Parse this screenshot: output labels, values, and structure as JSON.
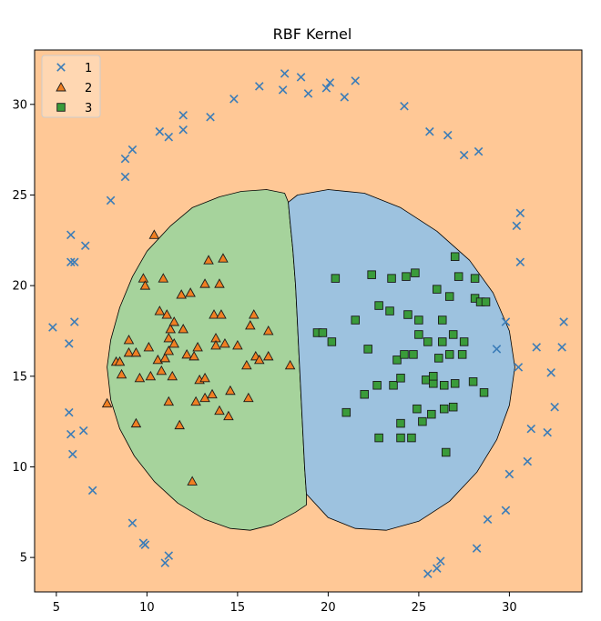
{
  "chart_data": {
    "type": "scatter",
    "title": "RBF Kernel",
    "xlabel": "",
    "ylabel": "",
    "xlim": [
      3.8,
      34.0
    ],
    "ylim": [
      3.1,
      33.0
    ],
    "xticks": [
      5,
      10,
      15,
      20,
      25,
      30
    ],
    "yticks": [
      5,
      10,
      15,
      20,
      25,
      30
    ],
    "grid": false,
    "legend_position": "top-left",
    "colors": {
      "background_region": "#FFC896",
      "region_2": "#A6D39C",
      "region_3": "#9DC2DF",
      "series_1": "#3A7CB8",
      "series_2": "#F07F22",
      "series_3": "#3A9B3A",
      "marker_edge": "#1a1a1a"
    },
    "decision_regions": [
      {
        "class": "2",
        "label": "region 2",
        "boundary": [
          [
            17.6,
            25.1
          ],
          [
            16.6,
            25.3
          ],
          [
            15.2,
            25.2
          ],
          [
            14.0,
            24.9
          ],
          [
            12.5,
            24.3
          ],
          [
            11.3,
            23.3
          ],
          [
            10.0,
            21.9
          ],
          [
            9.2,
            20.5
          ],
          [
            8.5,
            18.8
          ],
          [
            8.0,
            17.0
          ],
          [
            7.8,
            15.5
          ],
          [
            8.0,
            13.7
          ],
          [
            8.5,
            12.1
          ],
          [
            9.3,
            10.6
          ],
          [
            10.4,
            9.2
          ],
          [
            11.7,
            8.0
          ],
          [
            13.2,
            7.1
          ],
          [
            14.6,
            6.6
          ],
          [
            15.7,
            6.5
          ],
          [
            16.9,
            6.8
          ],
          [
            18.2,
            7.5
          ],
          [
            18.8,
            7.9
          ],
          [
            18.8,
            8.5
          ],
          [
            18.7,
            10
          ],
          [
            18.6,
            12
          ],
          [
            18.5,
            14
          ],
          [
            18.4,
            16
          ],
          [
            18.3,
            18
          ],
          [
            18.2,
            20
          ],
          [
            18.05,
            22
          ],
          [
            17.9,
            23.5
          ],
          [
            17.8,
            24.6
          ]
        ]
      },
      {
        "class": "3",
        "label": "region 3",
        "boundary": [
          [
            17.8,
            24.6
          ],
          [
            18.3,
            25.0
          ],
          [
            20.0,
            25.3
          ],
          [
            22.0,
            25.1
          ],
          [
            24.0,
            24.3
          ],
          [
            26.0,
            23.0
          ],
          [
            27.8,
            21.4
          ],
          [
            29.1,
            19.6
          ],
          [
            30.0,
            17.5
          ],
          [
            30.3,
            15.5
          ],
          [
            30.0,
            13.4
          ],
          [
            29.3,
            11.5
          ],
          [
            28.2,
            9.7
          ],
          [
            26.7,
            8.1
          ],
          [
            25.0,
            7.0
          ],
          [
            23.2,
            6.5
          ],
          [
            21.5,
            6.6
          ],
          [
            20.0,
            7.2
          ],
          [
            18.8,
            8.5
          ],
          [
            18.7,
            10
          ],
          [
            18.6,
            12
          ],
          [
            18.5,
            14
          ],
          [
            18.4,
            16
          ],
          [
            18.3,
            18
          ],
          [
            18.2,
            20
          ],
          [
            18.05,
            22
          ],
          [
            17.9,
            23.5
          ]
        ]
      }
    ],
    "series": [
      {
        "name": "1",
        "marker": "x",
        "points": [
          [
            4.8,
            17.7
          ],
          [
            5.7,
            16.8
          ],
          [
            5.8,
            21.3
          ],
          [
            5.8,
            22.8
          ],
          [
            6.0,
            21.3
          ],
          [
            6.0,
            18.0
          ],
          [
            5.7,
            13.0
          ],
          [
            5.8,
            11.8
          ],
          [
            5.9,
            10.7
          ],
          [
            6.5,
            12.0
          ],
          [
            6.6,
            22.2
          ],
          [
            7.0,
            8.7
          ],
          [
            8.0,
            24.7
          ],
          [
            8.8,
            26.0
          ],
          [
            8.8,
            27.0
          ],
          [
            9.2,
            27.5
          ],
          [
            9.2,
            6.9
          ],
          [
            9.8,
            5.8
          ],
          [
            9.9,
            5.7
          ],
          [
            10.7,
            28.5
          ],
          [
            11.0,
            4.7
          ],
          [
            11.2,
            28.2
          ],
          [
            11.2,
            5.1
          ],
          [
            12.0,
            28.6
          ],
          [
            12.0,
            29.4
          ],
          [
            13.5,
            29.3
          ],
          [
            14.8,
            30.3
          ],
          [
            16.2,
            31.0
          ],
          [
            17.5,
            30.8
          ],
          [
            17.6,
            31.7
          ],
          [
            18.5,
            31.5
          ],
          [
            18.9,
            30.6
          ],
          [
            19.9,
            30.9
          ],
          [
            20.1,
            31.2
          ],
          [
            20.9,
            30.4
          ],
          [
            21.5,
            31.3
          ],
          [
            24.2,
            29.9
          ],
          [
            25.6,
            28.5
          ],
          [
            25.5,
            4.1
          ],
          [
            26.0,
            4.4
          ],
          [
            26.2,
            4.8
          ],
          [
            26.6,
            28.3
          ],
          [
            27.5,
            27.2
          ],
          [
            28.2,
            5.5
          ],
          [
            28.3,
            27.4
          ],
          [
            28.8,
            7.1
          ],
          [
            29.3,
            16.5
          ],
          [
            29.8,
            18.0
          ],
          [
            29.8,
            7.6
          ],
          [
            30.0,
            9.6
          ],
          [
            30.4,
            23.3
          ],
          [
            30.5,
            15.5
          ],
          [
            30.6,
            24.0
          ],
          [
            30.6,
            21.3
          ],
          [
            31.0,
            10.3
          ],
          [
            31.2,
            12.1
          ],
          [
            31.5,
            16.6
          ],
          [
            32.1,
            11.9
          ],
          [
            32.3,
            15.2
          ],
          [
            32.5,
            13.3
          ],
          [
            32.9,
            16.6
          ],
          [
            33.0,
            18.0
          ]
        ]
      },
      {
        "name": "2",
        "marker": "triangle",
        "points": [
          [
            7.8,
            13.5
          ],
          [
            8.3,
            15.8
          ],
          [
            8.5,
            15.8
          ],
          [
            8.6,
            15.1
          ],
          [
            9.0,
            17.0
          ],
          [
            9.0,
            16.3
          ],
          [
            9.4,
            16.3
          ],
          [
            9.4,
            12.4
          ],
          [
            9.6,
            14.9
          ],
          [
            9.8,
            20.4
          ],
          [
            9.9,
            20.0
          ],
          [
            10.1,
            16.6
          ],
          [
            10.2,
            15.0
          ],
          [
            10.4,
            22.8
          ],
          [
            10.6,
            15.9
          ],
          [
            10.7,
            18.6
          ],
          [
            10.8,
            15.3
          ],
          [
            10.9,
            20.4
          ],
          [
            11.0,
            16.0
          ],
          [
            11.1,
            18.4
          ],
          [
            11.2,
            17.1
          ],
          [
            11.2,
            16.4
          ],
          [
            11.2,
            13.6
          ],
          [
            11.3,
            17.6
          ],
          [
            11.4,
            15.0
          ],
          [
            11.5,
            16.8
          ],
          [
            11.5,
            18.0
          ],
          [
            11.8,
            12.3
          ],
          [
            11.9,
            19.5
          ],
          [
            12.0,
            17.6
          ],
          [
            12.2,
            16.2
          ],
          [
            12.4,
            19.6
          ],
          [
            12.5,
            9.2
          ],
          [
            12.6,
            16.1
          ],
          [
            12.7,
            13.6
          ],
          [
            12.8,
            16.6
          ],
          [
            12.9,
            14.8
          ],
          [
            13.2,
            13.8
          ],
          [
            13.2,
            20.1
          ],
          [
            13.2,
            14.9
          ],
          [
            13.4,
            21.4
          ],
          [
            13.6,
            14.0
          ],
          [
            13.7,
            18.4
          ],
          [
            13.8,
            17.1
          ],
          [
            13.8,
            16.7
          ],
          [
            14.1,
            18.4
          ],
          [
            14.0,
            20.1
          ],
          [
            14.0,
            13.1
          ],
          [
            14.2,
            21.5
          ],
          [
            14.3,
            16.8
          ],
          [
            14.6,
            14.2
          ],
          [
            14.5,
            12.8
          ],
          [
            15.0,
            16.7
          ],
          [
            15.5,
            15.6
          ],
          [
            15.6,
            13.8
          ],
          [
            15.7,
            17.8
          ],
          [
            15.9,
            18.4
          ],
          [
            16.0,
            16.1
          ],
          [
            16.2,
            15.9
          ],
          [
            16.7,
            17.5
          ],
          [
            16.7,
            16.1
          ],
          [
            17.9,
            15.6
          ]
        ]
      },
      {
        "name": "3",
        "marker": "square",
        "points": [
          [
            19.4,
            17.4
          ],
          [
            19.7,
            17.4
          ],
          [
            20.2,
            16.9
          ],
          [
            20.4,
            20.4
          ],
          [
            21.0,
            13.0
          ],
          [
            21.5,
            18.1
          ],
          [
            22.0,
            14.0
          ],
          [
            22.2,
            16.5
          ],
          [
            22.4,
            20.6
          ],
          [
            22.7,
            14.5
          ],
          [
            22.8,
            11.6
          ],
          [
            22.8,
            18.9
          ],
          [
            23.4,
            18.6
          ],
          [
            23.5,
            20.4
          ],
          [
            23.6,
            14.5
          ],
          [
            23.8,
            15.9
          ],
          [
            24.0,
            12.4
          ],
          [
            24.0,
            11.6
          ],
          [
            24.0,
            14.9
          ],
          [
            24.2,
            16.2
          ],
          [
            24.3,
            20.5
          ],
          [
            24.4,
            18.4
          ],
          [
            24.6,
            11.6
          ],
          [
            24.7,
            16.2
          ],
          [
            24.9,
            13.2
          ],
          [
            24.8,
            20.7
          ],
          [
            25.0,
            18.1
          ],
          [
            25.0,
            17.3
          ],
          [
            25.2,
            12.5
          ],
          [
            25.4,
            14.8
          ],
          [
            25.5,
            16.9
          ],
          [
            25.7,
            12.9
          ],
          [
            25.8,
            14.6
          ],
          [
            25.8,
            15.0
          ],
          [
            26.0,
            19.8
          ],
          [
            26.1,
            16.0
          ],
          [
            26.3,
            16.9
          ],
          [
            26.3,
            18.1
          ],
          [
            26.4,
            13.2
          ],
          [
            26.5,
            10.8
          ],
          [
            26.4,
            14.5
          ],
          [
            26.7,
            19.4
          ],
          [
            26.7,
            16.2
          ],
          [
            26.9,
            17.3
          ],
          [
            26.9,
            13.3
          ],
          [
            27.0,
            21.6
          ],
          [
            27.0,
            14.6
          ],
          [
            27.2,
            20.5
          ],
          [
            27.4,
            16.2
          ],
          [
            27.5,
            16.9
          ],
          [
            28.0,
            14.7
          ],
          [
            28.1,
            20.4
          ],
          [
            28.1,
            19.3
          ],
          [
            28.4,
            19.1
          ],
          [
            28.7,
            19.1
          ],
          [
            28.6,
            14.1
          ]
        ]
      }
    ]
  }
}
